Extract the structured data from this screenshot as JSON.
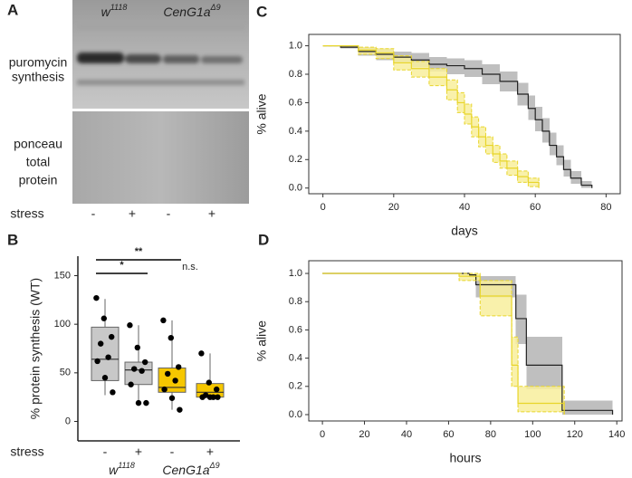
{
  "chart_data": [
    {
      "type": "blot",
      "panel_label": "A",
      "genotypes": [
        {
          "name": "w",
          "superscript": "1118"
        },
        {
          "name": "CenG1a",
          "superscript": "Δ9"
        }
      ],
      "rows": [
        [
          "puromycin",
          "synthesis"
        ],
        [
          "ponceau",
          "total",
          "protein"
        ]
      ],
      "stress_label": "stress",
      "stress_levels": [
        "-",
        "+",
        "-",
        "+"
      ]
    },
    {
      "type": "box",
      "panel_label": "B",
      "y_label": "% protein synthesis (WT)",
      "ylim": [
        -20,
        170
      ],
      "yticks": [
        0,
        50,
        100,
        150
      ],
      "stress_label": "stress",
      "categories": [
        "-",
        "+",
        "-",
        "+"
      ],
      "genotypes": [
        {
          "name": "w",
          "superscript": "1118"
        },
        {
          "name": "CenG1a",
          "superscript": "Δ9"
        }
      ],
      "groups": [
        {
          "color": "#c8c8c8",
          "whisker_low": 27,
          "q1": 42,
          "median": 64,
          "q3": 97,
          "whisker_high": 126,
          "points": [
            127,
            106,
            87,
            80,
            66,
            62,
            45,
            30
          ]
        },
        {
          "color": "#c8c8c8",
          "whisker_low": 18,
          "q1": 38,
          "median": 53,
          "q3": 61,
          "whisker_high": 99,
          "points": [
            99,
            76,
            61,
            54,
            52,
            38,
            19,
            19
          ]
        },
        {
          "color": "#f6c700",
          "whisker_low": 12,
          "q1": 30,
          "median": 35,
          "q3": 55,
          "whisker_high": 104,
          "points": [
            104,
            86,
            56,
            49,
            42,
            33,
            24,
            12
          ]
        },
        {
          "color": "#f6c700",
          "whisker_low": 24,
          "q1": 25,
          "median": 30,
          "q3": 39,
          "whisker_high": 70,
          "points": [
            70,
            40,
            33,
            27,
            25,
            25,
            25,
            25
          ]
        }
      ],
      "significance": [
        {
          "label": "**",
          "from": 0,
          "to": 2
        },
        {
          "label": "*",
          "from": 0,
          "to": 1
        },
        {
          "label": "n.s.",
          "from": 2,
          "to": 2
        }
      ]
    },
    {
      "type": "survival",
      "panel_label": "C",
      "x_label": "days",
      "y_label": "% alive",
      "xlim": [
        -4,
        84
      ],
      "ylim": [
        -0.04,
        1.08
      ],
      "xticks": [
        0,
        20,
        40,
        60,
        80
      ],
      "yticks": [
        {
          "value": 0,
          "label": "0.0"
        },
        0.2,
        0.4,
        0.6,
        0.8,
        {
          "value": 1,
          "label": "1.0"
        }
      ],
      "series": [
        {
          "color": "#222222",
          "band_color": "#b4b4b4",
          "band_outline": false,
          "x": [
            0,
            5,
            10,
            15,
            20,
            25,
            30,
            35,
            40,
            45,
            50,
            55,
            58,
            60,
            62,
            64,
            66,
            68,
            70,
            73,
            76
          ],
          "values": [
            1,
            0.99,
            0.96,
            0.94,
            0.92,
            0.9,
            0.87,
            0.86,
            0.84,
            0.8,
            0.75,
            0.66,
            0.56,
            0.48,
            0.4,
            0.3,
            0.22,
            0.13,
            0.07,
            0.02,
            0
          ],
          "lower": [
            1,
            0.98,
            0.93,
            0.9,
            0.88,
            0.85,
            0.82,
            0.8,
            0.78,
            0.73,
            0.68,
            0.58,
            0.48,
            0.4,
            0.32,
            0.23,
            0.16,
            0.08,
            0.03,
            0,
            0
          ],
          "upper": [
            1,
            1,
            0.99,
            0.98,
            0.96,
            0.95,
            0.92,
            0.91,
            0.9,
            0.87,
            0.82,
            0.74,
            0.65,
            0.57,
            0.49,
            0.39,
            0.3,
            0.2,
            0.12,
            0.05,
            0.01
          ]
        },
        {
          "color": "#e8d52a",
          "band_color": "#f8ef9c",
          "band_outline": true,
          "x": [
            0,
            10,
            15,
            20,
            25,
            30,
            35,
            38,
            40,
            42,
            44,
            46,
            48,
            50,
            52,
            55,
            58,
            61
          ],
          "values": [
            1,
            0.97,
            0.95,
            0.88,
            0.84,
            0.78,
            0.69,
            0.6,
            0.52,
            0.43,
            0.36,
            0.3,
            0.24,
            0.19,
            0.14,
            0.08,
            0.04,
            0
          ],
          "lower": [
            1,
            0.94,
            0.91,
            0.83,
            0.78,
            0.72,
            0.62,
            0.53,
            0.45,
            0.36,
            0.29,
            0.24,
            0.18,
            0.14,
            0.09,
            0.04,
            0.01,
            0
          ],
          "upper": [
            1,
            0.99,
            0.98,
            0.93,
            0.89,
            0.84,
            0.76,
            0.67,
            0.59,
            0.5,
            0.43,
            0.36,
            0.3,
            0.24,
            0.19,
            0.12,
            0.07,
            0.02
          ]
        }
      ]
    },
    {
      "type": "survival",
      "panel_label": "D",
      "x_label": "hours",
      "y_label": "% alive",
      "xlim": [
        -6.5,
        142.5
      ],
      "ylim": [
        -0.045,
        1.09
      ],
      "xticks": [
        0,
        20,
        40,
        60,
        80,
        100,
        120,
        140
      ],
      "yticks": [
        {
          "value": 0,
          "label": "0.0"
        },
        0.2,
        0.4,
        0.6,
        0.8,
        {
          "value": 1,
          "label": "1.0"
        }
      ],
      "series": [
        {
          "color": "#222222",
          "band_color": "#b4b4b4",
          "band_outline": false,
          "x": [
            0,
            70,
            73,
            92,
            97,
            114,
            138
          ],
          "values": [
            1,
            0.99,
            0.92,
            0.68,
            0.35,
            0.03,
            0
          ],
          "lower": [
            1,
            0.97,
            0.83,
            0.5,
            0.18,
            0,
            0
          ],
          "upper": [
            1,
            1,
            0.98,
            0.85,
            0.55,
            0.1,
            0.06
          ]
        },
        {
          "color": "#e8d52a",
          "band_color": "#f8ef9c",
          "band_outline": true,
          "x": [
            0,
            65,
            75,
            90,
            93,
            115
          ],
          "values": [
            1,
            0.98,
            0.84,
            0.35,
            0.08,
            0
          ],
          "lower": [
            1,
            0.95,
            0.7,
            0.2,
            0.02,
            0
          ],
          "upper": [
            1,
            1,
            0.95,
            0.55,
            0.2,
            0.02
          ]
        }
      ]
    }
  ]
}
